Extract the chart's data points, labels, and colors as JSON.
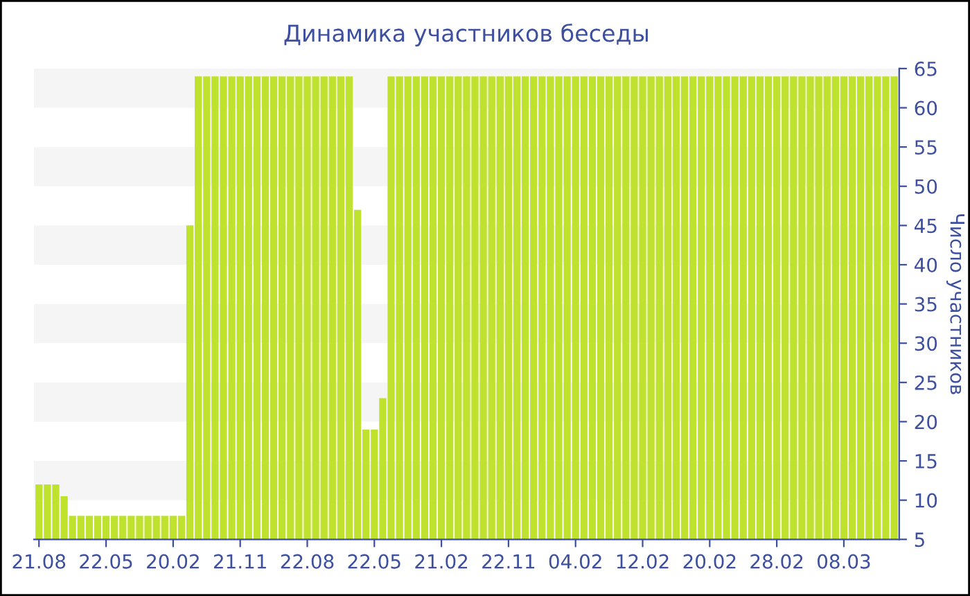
{
  "chart_data": {
    "type": "bar",
    "title": "Динамика участников беседы",
    "ylabel": "Число участников",
    "categories": [
      "21.08",
      null,
      null,
      null,
      null,
      null,
      null,
      null,
      "22.05",
      null,
      null,
      null,
      null,
      null,
      null,
      null,
      "20.02",
      null,
      null,
      null,
      null,
      null,
      null,
      null,
      "21.11",
      null,
      null,
      null,
      null,
      null,
      null,
      null,
      "22.08",
      null,
      null,
      null,
      null,
      null,
      null,
      null,
      "22.05",
      null,
      null,
      null,
      null,
      null,
      null,
      null,
      "21.02",
      null,
      null,
      null,
      null,
      null,
      null,
      null,
      "22.11",
      null,
      null,
      null,
      null,
      null,
      null,
      null,
      "04.02",
      null,
      null,
      null,
      null,
      null,
      null,
      null,
      "12.02",
      null,
      null,
      null,
      null,
      null,
      null,
      null,
      "20.02",
      null,
      null,
      null,
      null,
      null,
      null,
      null,
      "28.02",
      null,
      null,
      null,
      null,
      null,
      null,
      null,
      "08.03",
      null,
      null,
      null,
      null,
      null,
      null
    ],
    "values": [
      12,
      12,
      12,
      10.5,
      8,
      8,
      8,
      8,
      8,
      8,
      8,
      8,
      8,
      8,
      8,
      8,
      8,
      8,
      45,
      64,
      64,
      64,
      64,
      64,
      64,
      64,
      64,
      64,
      64,
      64,
      64,
      64,
      64,
      64,
      64,
      64,
      64,
      64,
      47,
      19,
      19,
      23,
      64,
      64,
      64,
      64,
      64,
      64,
      64,
      64,
      64,
      64,
      64,
      64,
      64,
      64,
      64,
      64,
      64,
      64,
      64,
      64,
      64,
      64,
      64,
      64,
      64,
      64,
      64,
      64,
      64,
      64,
      64,
      64,
      64,
      64,
      64,
      64,
      64,
      64,
      64,
      64,
      64,
      64,
      64,
      64,
      64,
      64,
      64,
      64,
      64,
      64,
      64,
      64,
      64,
      64,
      64,
      64,
      64,
      64,
      64,
      64,
      64
    ],
    "color": "#bfe22e",
    "ylim": [
      5,
      65
    ],
    "yticks": [
      5,
      10,
      15,
      20,
      25,
      30,
      35,
      40,
      45,
      50,
      55,
      60,
      65
    ],
    "bands": [
      {
        "axis": "y",
        "from": 10,
        "to": 15,
        "color": "#f5f5f5"
      },
      {
        "axis": "y",
        "from": 20,
        "to": 25,
        "color": "#f5f5f5"
      },
      {
        "axis": "y",
        "from": 30,
        "to": 35,
        "color": "#f5f5f5"
      },
      {
        "axis": "y",
        "from": 40,
        "to": 45,
        "color": "#f5f5f5"
      },
      {
        "axis": "y",
        "from": 50,
        "to": 55,
        "color": "#f5f5f5"
      },
      {
        "axis": "y",
        "from": 60,
        "to": 65,
        "color": "#f5f5f5"
      }
    ]
  }
}
